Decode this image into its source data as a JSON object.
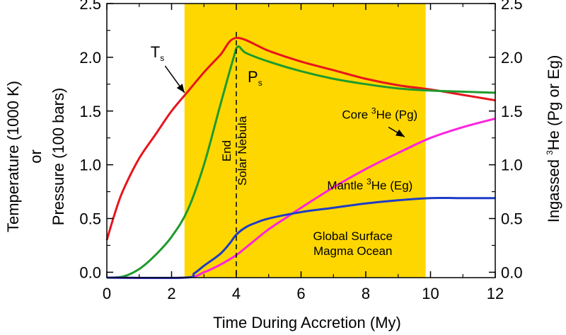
{
  "chart_data": {
    "type": "line",
    "xlabel": "Time During Accretion (My)",
    "ylabel_left": [
      "Temperature (1000 K)",
      "or",
      "Pressure (100 bars)"
    ],
    "ylabel_right": {
      "pre": "Ingassed ",
      "sup": "3",
      "post": "He   (Pg or Eg)"
    },
    "xlim": [
      0,
      12
    ],
    "ylim": [
      -0.05,
      2.5
    ],
    "x_ticks": [
      0,
      2,
      4,
      6,
      8,
      10,
      12
    ],
    "y_ticks": [
      0.0,
      0.5,
      1.0,
      1.5,
      2.0,
      2.5
    ],
    "x_tick_labels": [
      "0",
      "2",
      "4",
      "6",
      "8",
      "10",
      "12"
    ],
    "y_tick_labels": [
      "0.0",
      "0.5",
      "1.0",
      "1.5",
      "2.0",
      "2.5"
    ],
    "grid": false,
    "shaded_region": {
      "x": [
        2.4,
        9.85
      ],
      "color": "#FFD700"
    },
    "vertical_line": {
      "x": 4.0,
      "style": "dashed",
      "label_1": "End",
      "label_2": "Solar Nebula"
    },
    "series": [
      {
        "name": "T",
        "color": "#E8141C",
        "x": [
          0,
          0.25,
          0.5,
          1.0,
          1.5,
          2.0,
          2.5,
          3.0,
          3.5,
          4.0,
          5.0,
          6.0,
          7.0,
          8.0,
          9.0,
          10.0,
          11.0,
          12.0
        ],
        "y": [
          0.3,
          0.55,
          0.76,
          1.06,
          1.28,
          1.5,
          1.68,
          1.86,
          2.02,
          2.18,
          2.06,
          1.96,
          1.88,
          1.8,
          1.74,
          1.7,
          1.65,
          1.6
        ]
      },
      {
        "name": "P",
        "color": "#1E9A2E",
        "x": [
          0,
          0.5,
          1.0,
          1.5,
          2.0,
          2.5,
          3.0,
          3.5,
          3.9,
          4.05,
          4.3,
          5.0,
          6.0,
          7.0,
          8.0,
          9.0,
          10.0,
          11.0,
          12.0
        ],
        "y": [
          -0.05,
          -0.04,
          0.03,
          0.16,
          0.33,
          0.58,
          1.0,
          1.55,
          1.98,
          2.1,
          2.04,
          1.96,
          1.87,
          1.8,
          1.75,
          1.71,
          1.69,
          1.68,
          1.67
        ]
      },
      {
        "name": "Core 3He (Pg)",
        "color": "#FF22DD",
        "x": [
          0,
          2.4,
          3.0,
          3.5,
          4.0,
          4.5,
          5.0,
          5.5,
          6.0,
          7.0,
          8.0,
          9.0,
          10.0,
          11.0,
          12.0
        ],
        "y": [
          -0.05,
          -0.05,
          0.0,
          0.07,
          0.16,
          0.28,
          0.4,
          0.5,
          0.6,
          0.79,
          0.96,
          1.11,
          1.25,
          1.35,
          1.43
        ]
      },
      {
        "name": "Mantle 3He (Eg)",
        "color": "#1E3CC8",
        "x": [
          0,
          2.4,
          2.7,
          3.0,
          3.5,
          3.8,
          4.0,
          4.3,
          4.6,
          5.0,
          6.0,
          7.0,
          8.0,
          9.0,
          10.0,
          11.0,
          12.0
        ],
        "y": [
          -0.05,
          -0.05,
          -0.01,
          0.06,
          0.17,
          0.27,
          0.35,
          0.42,
          0.46,
          0.5,
          0.56,
          0.6,
          0.64,
          0.67,
          0.69,
          0.69,
          0.69
        ]
      }
    ],
    "annotations": [
      {
        "base": "T",
        "sub": "s",
        "x": 1.35,
        "y": 2.0
      },
      {
        "base": "P",
        "sub": "s",
        "x": 4.35,
        "y": 1.77
      },
      {
        "pre": "Core ",
        "sup": "3",
        "post": "He (Pg)",
        "x": 9.6,
        "y": 1.43
      },
      {
        "pre": "Mantle ",
        "sup": "3",
        "post": "He (Eg)",
        "x": 9.45,
        "y": 0.77
      },
      {
        "lines": [
          "Global Surface",
          "Magma Ocean"
        ],
        "x": 7.6,
        "y": 0.3
      }
    ],
    "arrows": [
      {
        "from": [
          1.8,
          1.92
        ],
        "to": [
          2.4,
          1.67
        ]
      },
      {
        "from": [
          8.7,
          1.35
        ],
        "to": [
          9.2,
          1.26
        ]
      }
    ]
  }
}
